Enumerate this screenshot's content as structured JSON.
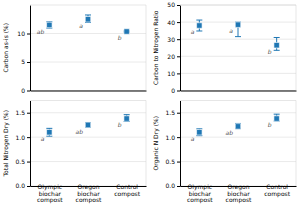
{
  "chart_data": [
    {
      "type": "scatter",
      "y_label": "Carbon as-is (%)",
      "categories": [
        "Olympic\nbiochar\ncompost",
        "Oregon\nbiochar\ncompost",
        "Control\ncompost"
      ],
      "values": [
        11.5,
        12.5,
        10.35
      ],
      "errors_low": [
        0.55,
        0.55,
        0.1
      ],
      "errors_high": [
        0.55,
        0.75,
        0.1
      ],
      "annotations": [
        "ab",
        "a",
        "b"
      ],
      "ylim": [
        0,
        15
      ],
      "yticks": [
        0,
        5,
        10
      ],
      "grid": true,
      "marker": "square",
      "tick_labels": "y"
    },
    {
      "type": "scatter",
      "y_label": "Carbon to Nitrogen Ratio",
      "categories": [
        "Olympic\nbiochar\ncompost",
        "Oregon\nbiochar\ncompost",
        "Control\ncompost"
      ],
      "values": [
        38.0,
        38.5,
        26.5
      ],
      "errors_low": [
        3.2,
        7.0,
        3.0
      ],
      "errors_high": [
        3.2,
        1.5,
        4.5
      ],
      "annotations": [
        "a",
        "a",
        "b"
      ],
      "ylim": [
        0,
        50
      ],
      "yticks": [
        0,
        10,
        20,
        30,
        40,
        50
      ],
      "grid": true,
      "marker": "square",
      "tick_labels": "y"
    },
    {
      "type": "scatter",
      "y_label": "Total Nitrogen Dry (%)",
      "categories": [
        "Olympic\nbiochar\ncompost",
        "Oregon\nbiochar\ncompost",
        "Control\ncompost"
      ],
      "values": [
        1.1,
        1.25,
        1.38
      ],
      "errors_low": [
        0.08,
        0.05,
        0.06
      ],
      "errors_high": [
        0.08,
        0.05,
        0.08
      ],
      "annotations": [
        "a",
        "ab",
        "b"
      ],
      "ylim": [
        0,
        1.75
      ],
      "yticks": [
        {
          "value": 0,
          "label": "0.0"
        },
        0.5,
        {
          "value": 1.0,
          "label": "1.0"
        },
        1.5
      ],
      "grid": true,
      "marker": "square"
    },
    {
      "type": "scatter",
      "y_label": "Organic N Dry (%)",
      "categories": [
        "Olympic\nbiochar\ncompost",
        "Oregon\nbiochar\ncompost",
        "Control\ncompost"
      ],
      "values": [
        1.1,
        1.22,
        1.38
      ],
      "errors_low": [
        0.07,
        0.04,
        0.05
      ],
      "errors_high": [
        0.07,
        0.06,
        0.09
      ],
      "annotations": [
        "a",
        "ab",
        "b"
      ],
      "ylim": [
        0,
        1.75
      ],
      "yticks": [
        {
          "value": 0,
          "label": "0.0"
        },
        0.5,
        {
          "value": 1.0,
          "label": "1.0"
        },
        1.5
      ],
      "grid": true,
      "marker": "square"
    }
  ]
}
